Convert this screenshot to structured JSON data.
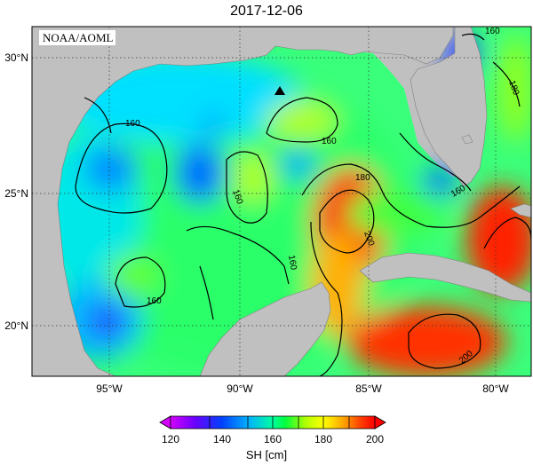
{
  "title": "2017-12-06",
  "watermark": "NOAA/AOML",
  "map": {
    "lat_ticks": [
      "30°N",
      "25°N",
      "20°N"
    ],
    "lon_ticks": [
      "95°W",
      "90°W",
      "85°W",
      "80°W"
    ],
    "lat_range_deg": [
      18,
      31
    ],
    "lon_range_deg": [
      -98,
      -78
    ],
    "land_color": "#c0c0c0",
    "grid": "dotted",
    "marker": "triangle"
  },
  "contour_labels": [
    "160",
    "160",
    "160",
    "160",
    "160",
    "180",
    "180",
    "200",
    "200",
    "160",
    "160"
  ],
  "colorbar": {
    "label": "SH [cm]",
    "ticks": [
      "120",
      "140",
      "160",
      "180",
      "200"
    ],
    "min": 120,
    "max": 200,
    "colors": [
      "#d400ff",
      "#6a00ff",
      "#0040ff",
      "#00b0ff",
      "#00ffd0",
      "#00ff40",
      "#b0ff00",
      "#ffff00",
      "#ffa000",
      "#ff4000",
      "#ff0000"
    ]
  }
}
